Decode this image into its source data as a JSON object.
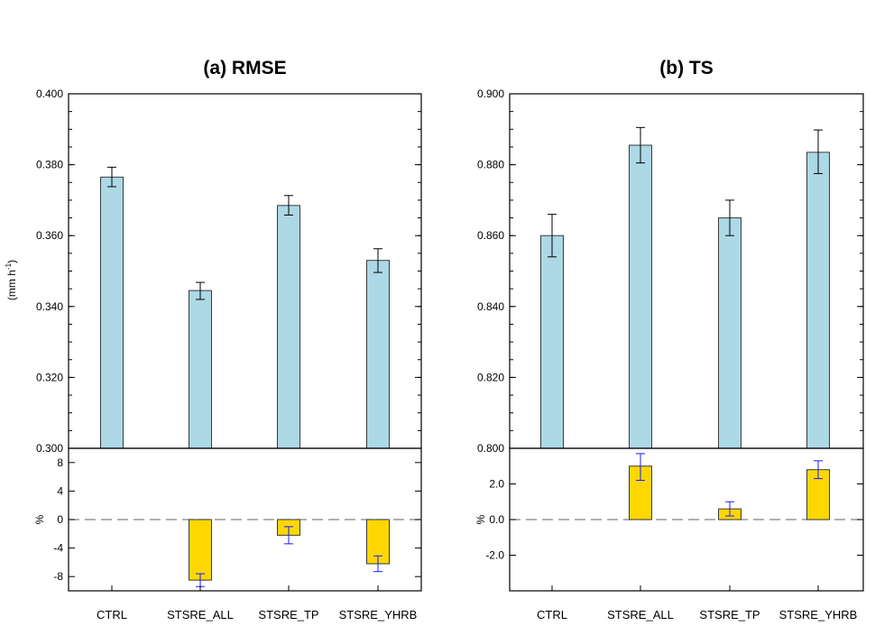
{
  "chart_data": [
    {
      "type": "bar",
      "panel": "a",
      "title": "(a) RMSE",
      "categories": [
        "CTRL",
        "STSRE_ALL",
        "STSRE_TP",
        "STSRE_YHRB"
      ],
      "top": {
        "ylabel_main": "(mm h",
        "ylabel_sup": "-1",
        "ylabel_end": ")",
        "ylim": [
          0.3,
          0.4
        ],
        "yticks": [
          "0.300",
          "0.320",
          "0.340",
          "0.360",
          "0.380",
          "0.400"
        ],
        "tick_values": [
          0.3,
          0.32,
          0.34,
          0.36,
          0.38,
          0.4
        ],
        "values": [
          0.3765,
          0.3445,
          0.3685,
          0.353
        ],
        "err_high": [
          0.3793,
          0.3468,
          0.3713,
          0.3563
        ],
        "err_low": [
          0.3738,
          0.342,
          0.3658,
          0.3496
        ],
        "bar_color": "#ADD8E6"
      },
      "bottom": {
        "ylabel": "%",
        "ylim": [
          -10,
          10
        ],
        "yticks": [
          "8",
          "4",
          "0",
          "-4",
          "-8"
        ],
        "tick_values": [
          8,
          4,
          0,
          -4,
          -8
        ],
        "values": [
          0,
          -8.5,
          -2.2,
          -6.2
        ],
        "err_high": [
          0,
          -7.6,
          -1.0,
          -5.1
        ],
        "err_low": [
          0,
          -9.4,
          -3.4,
          -7.3
        ],
        "bar_color": "#FFD700"
      }
    },
    {
      "type": "bar",
      "panel": "b",
      "title": "(b) TS",
      "categories": [
        "CTRL",
        "STSRE_ALL",
        "STSRE_TP",
        "STSRE_YHRB"
      ],
      "top": {
        "ylim": [
          0.8,
          0.9
        ],
        "yticks": [
          "0.800",
          "0.820",
          "0.840",
          "0.860",
          "0.880",
          "0.900"
        ],
        "tick_values": [
          0.8,
          0.82,
          0.84,
          0.86,
          0.88,
          0.9
        ],
        "values": [
          0.86,
          0.8855,
          0.865,
          0.8835
        ],
        "err_high": [
          0.866,
          0.8905,
          0.87,
          0.8898
        ],
        "err_low": [
          0.854,
          0.8805,
          0.86,
          0.8775
        ],
        "bar_color": "#ADD8E6"
      },
      "bottom": {
        "ylabel": "%",
        "ylim": [
          -4,
          4
        ],
        "yticks": [
          "2.0",
          "0.0",
          "-2.0"
        ],
        "tick_values": [
          2.0,
          0.0,
          -2.0
        ],
        "values": [
          0,
          3.0,
          0.6,
          2.8
        ],
        "err_high": [
          0,
          3.7,
          1.0,
          3.3
        ],
        "err_low": [
          0,
          2.2,
          0.2,
          2.3
        ],
        "bar_color": "#FFD700"
      }
    }
  ],
  "colors": {
    "bar_top": "#ADD8E6",
    "bar_bottom": "#FFD700",
    "err_top": "#000000",
    "err_bottom": "#1a1aff",
    "zero_line": "#808080"
  }
}
